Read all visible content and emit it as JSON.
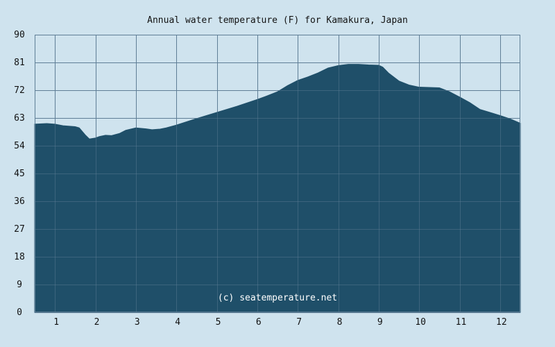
{
  "chart_data": {
    "type": "area",
    "title": "Annual water temperature (F) for Kamakura, Japan",
    "xlabel": "",
    "ylabel": "",
    "x_tick_labels": [
      "1",
      "2",
      "3",
      "4",
      "5",
      "6",
      "7",
      "8",
      "9",
      "10",
      "11",
      "12"
    ],
    "y_tick_labels": [
      "0",
      "9",
      "18",
      "27",
      "36",
      "45",
      "54",
      "63",
      "72",
      "81",
      "90"
    ],
    "ylim": [
      0,
      90
    ],
    "xlim": [
      0.5,
      12.5
    ],
    "grid": true,
    "legend": "none",
    "watermark": "(c) seatemperature.net",
    "colors": {
      "background": "#cfe3ee",
      "plot_background": "#cfe3ee",
      "area_fill": "#1f4f69",
      "grid": "#5f7f96",
      "text": "#111111"
    },
    "series": [
      {
        "x": [
          0.5,
          0.8,
          1.0,
          1.2,
          1.5,
          1.6,
          1.75,
          1.85,
          2.0,
          2.1,
          2.25,
          2.4,
          2.6,
          2.75,
          3.0,
          3.25,
          3.4,
          3.6,
          3.75,
          4.0,
          4.5,
          5.0,
          5.5,
          6.0,
          6.25,
          6.5,
          6.75,
          7.0,
          7.25,
          7.5,
          7.75,
          8.0,
          8.25,
          8.5,
          8.75,
          9.0,
          9.1,
          9.25,
          9.5,
          9.75,
          10.0,
          10.25,
          10.5,
          10.75,
          11.0,
          11.25,
          11.5,
          11.75,
          12.0,
          12.25,
          12.5
        ],
        "values": [
          61.0,
          61.2,
          61.0,
          60.5,
          60.2,
          59.8,
          57.5,
          56.2,
          56.5,
          57.0,
          57.4,
          57.3,
          58.0,
          59.0,
          59.8,
          59.5,
          59.2,
          59.4,
          59.8,
          60.7,
          62.8,
          64.8,
          66.8,
          69.0,
          70.2,
          71.5,
          73.5,
          75.2,
          76.3,
          77.6,
          79.2,
          80.0,
          80.4,
          80.4,
          80.2,
          80.1,
          79.5,
          77.5,
          75.0,
          73.7,
          73.0,
          72.9,
          72.8,
          71.5,
          69.8,
          68.0,
          65.8,
          64.8,
          63.8,
          62.7,
          61.3
        ]
      }
    ]
  }
}
